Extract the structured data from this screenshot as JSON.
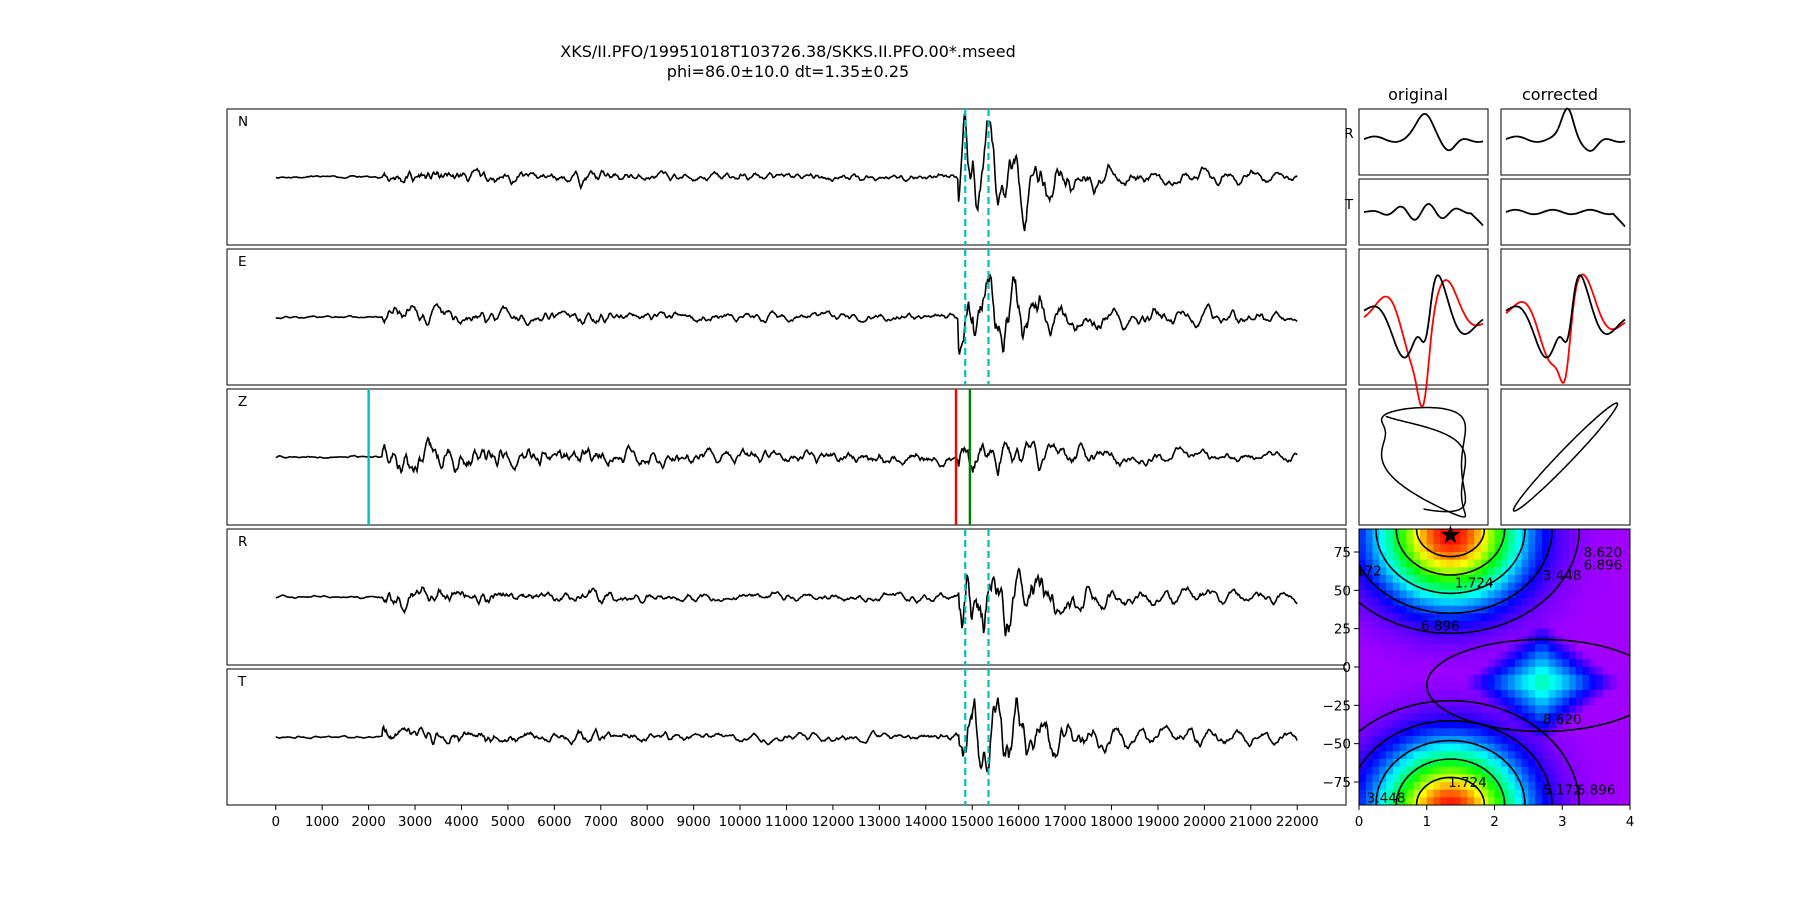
{
  "title": {
    "line1": "XKS/II.PFO/19951018T103726.38/SKKS.II.PFO.00*.mseed",
    "line2": "phi=86.0±10.0 dt=1.35±0.25"
  },
  "panel_titles": {
    "original": "original",
    "corrected": "corrected"
  },
  "small_labels": {
    "r": "R",
    "t": "T"
  },
  "colors": {
    "trace": "#000000",
    "pick_cyan": "#00bfbf",
    "pick_red": "#ff0000",
    "pick_green": "#008000",
    "star": "#000000"
  },
  "chart_data": [
    {
      "type": "line",
      "name": "seismograms",
      "panels": [
        {
          "label": "N",
          "window_picks": [
            14850,
            15350
          ],
          "amp": 1.0,
          "seed": 11
        },
        {
          "label": "E",
          "window_picks": [
            14850,
            15350
          ],
          "amp": 1.0,
          "seed": 23
        },
        {
          "label": "Z",
          "phase_picks": [
            {
              "x": 2000,
              "color": "pick_cyan"
            },
            {
              "x": 14650,
              "color": "pick_red"
            },
            {
              "x": 14950,
              "color": "pick_green"
            }
          ],
          "amp": 1.0,
          "seed": 37
        },
        {
          "label": "R",
          "window_picks": [
            14850,
            15350
          ],
          "amp": 1.0,
          "seed": 41
        },
        {
          "label": "T",
          "window_picks": [
            14850,
            15350
          ],
          "amp": 1.0,
          "seed": 53
        }
      ],
      "x_range": [
        -1050,
        23050
      ],
      "trace_x_range": [
        0,
        22000
      ],
      "xticks": [
        0,
        1000,
        2000,
        3000,
        4000,
        5000,
        6000,
        7000,
        8000,
        9000,
        10000,
        11000,
        12000,
        13000,
        14000,
        15000,
        16000,
        17000,
        18000,
        19000,
        20000,
        21000,
        22000
      ],
      "grid": false
    },
    {
      "type": "heatmap",
      "name": "grid-search",
      "x_range": [
        0,
        4
      ],
      "y_range": [
        -90,
        90
      ],
      "xticks": [
        0,
        1,
        2,
        3,
        4
      ],
      "yticks": [
        75,
        50,
        25,
        0,
        -25,
        -50,
        -75
      ],
      "contour_levels": [
        1.724,
        3.448,
        5.172,
        6.896,
        8.62
      ],
      "contour_labels": [
        "1.724",
        "3.448",
        "5.172",
        "6.896",
        "8.620"
      ],
      "best": {
        "dt": 1.35,
        "phi": 86.0
      },
      "colormap": "gist_rainbow"
    }
  ]
}
